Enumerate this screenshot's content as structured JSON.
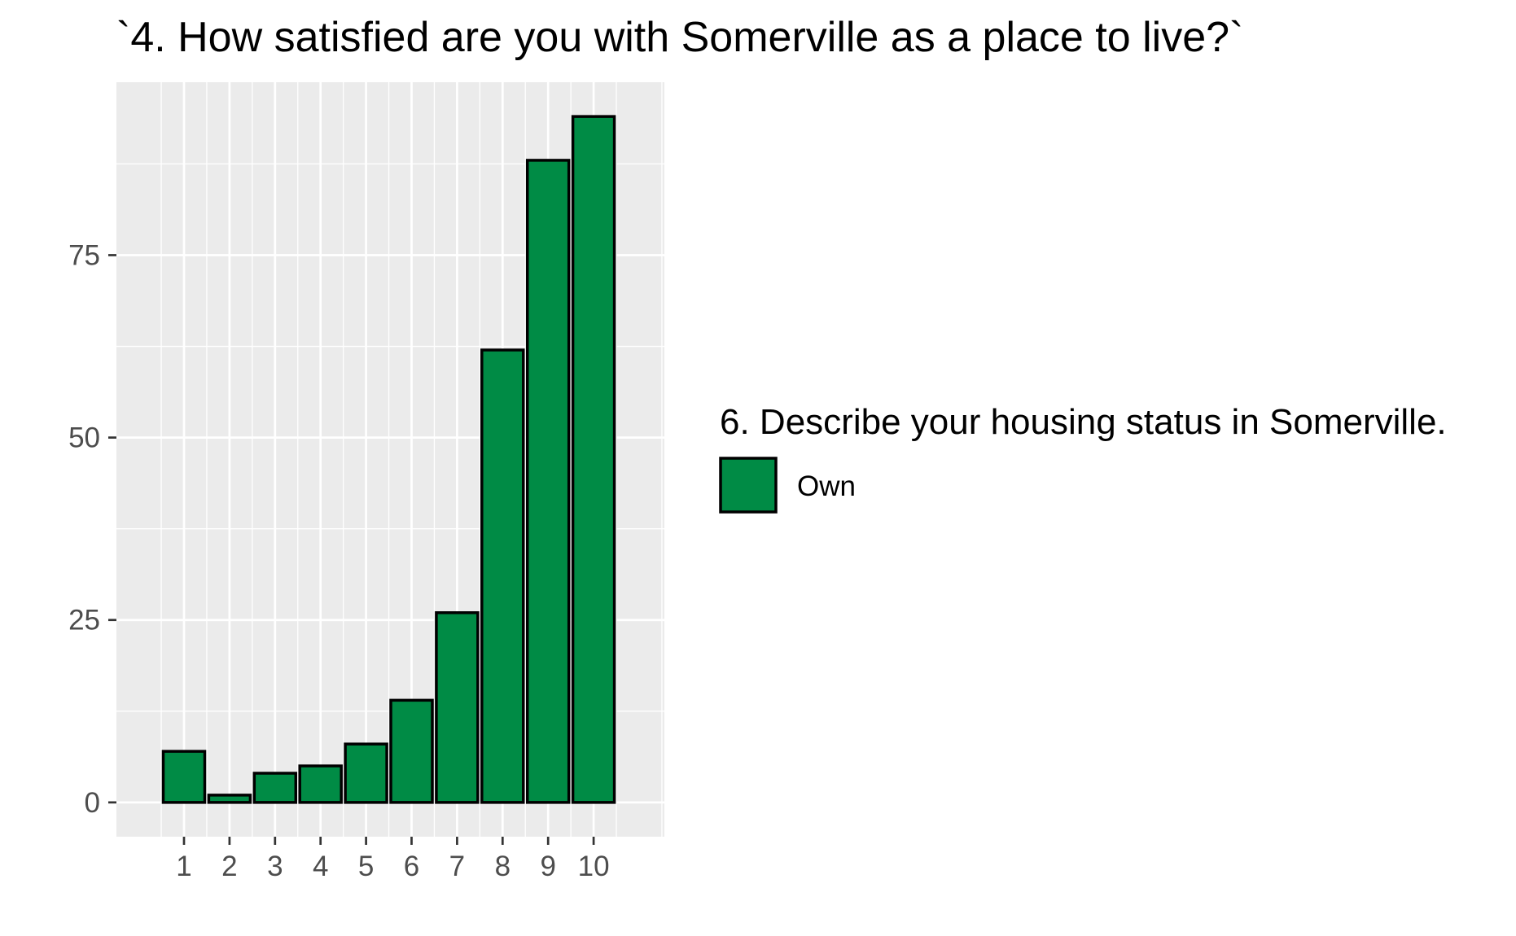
{
  "chart_data": {
    "type": "bar",
    "title": "`4. How satisfied are you with Somerville as a place to live?`",
    "xlabel": "",
    "ylabel": "",
    "categories": [
      "1",
      "2",
      "3",
      "4",
      "5",
      "6",
      "7",
      "8",
      "9",
      "10"
    ],
    "series": [
      {
        "name": "Own",
        "values": [
          7,
          1,
          4,
          5,
          8,
          14,
          26,
          62,
          88,
          94
        ]
      }
    ],
    "y_ticks": [
      "0",
      "25",
      "50",
      "75"
    ],
    "y_tick_values": [
      0,
      25,
      50,
      75
    ],
    "ylim": [
      -4.7,
      98.7
    ],
    "legend": {
      "title": "6. Describe your housing status in Somerville.",
      "placement": "right",
      "entries": [
        "Own"
      ]
    },
    "grid": true,
    "colors": {
      "bar_fill": "#008b45",
      "bar_stroke": "#000000",
      "panel_background": "#ebebeb",
      "grid_line": "#ffffff",
      "tick_text": "#4d4d4d"
    }
  }
}
